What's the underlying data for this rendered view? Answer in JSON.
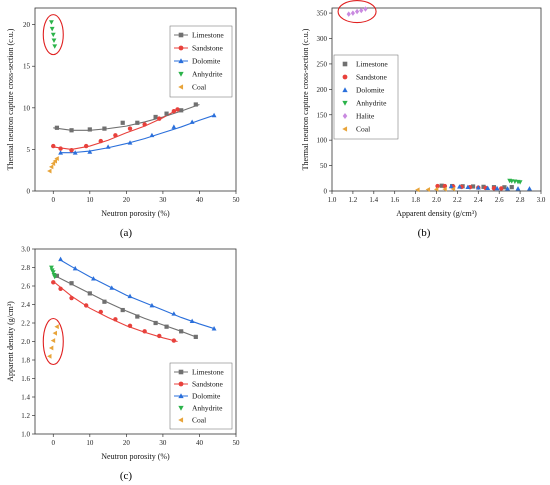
{
  "colors": {
    "Limestone": "#707070",
    "Sandstone": "#e8413c",
    "Dolomite": "#2a6fdb",
    "Anhydrite": "#2bb34a",
    "Halite": "#c98ae0",
    "Coal": "#e8a43a",
    "highlight_ellipse": "#e02020"
  },
  "panel_labels": [
    "(a)",
    "(b)",
    "(c)"
  ],
  "chart_data": [
    {
      "type": "scatter",
      "panel": "(a)",
      "xlabel": "Neutron porosity (%)",
      "ylabel": "Thermal neutron capture cross-section (c.u.)",
      "xlim": [
        -5,
        50
      ],
      "ylim": [
        0,
        22
      ],
      "xticks": [
        0,
        10,
        20,
        30,
        40,
        50
      ],
      "yticks": [
        0,
        5,
        10,
        15,
        20
      ],
      "legend_position": "top-right",
      "series": [
        {
          "name": "Limestone",
          "marker": "square",
          "x": [
            1,
            5,
            10,
            14,
            19,
            23,
            28,
            31,
            35,
            39
          ],
          "y": [
            7.6,
            7.3,
            7.4,
            7.5,
            8.2,
            8.2,
            8.9,
            9.3,
            9.7,
            10.4
          ],
          "fit": {
            "x": [
              0,
              5,
              10,
              15,
              20,
              25,
              30,
              35,
              40
            ],
            "y": [
              7.6,
              7.3,
              7.3,
              7.5,
              7.8,
              8.3,
              8.9,
              9.6,
              10.4
            ]
          }
        },
        {
          "name": "Sandstone",
          "marker": "circle",
          "x": [
            0,
            2,
            5,
            9,
            13,
            17,
            21,
            25,
            29,
            33,
            34
          ],
          "y": [
            5.4,
            5.1,
            4.9,
            5.4,
            6.0,
            6.7,
            7.5,
            8.0,
            8.7,
            9.6,
            9.8
          ],
          "fit": {
            "x": [
              0,
              5,
              10,
              15,
              20,
              25,
              30,
              34
            ],
            "y": [
              5.3,
              5.0,
              5.4,
              6.1,
              7.0,
              7.8,
              8.8,
              9.8
            ]
          }
        },
        {
          "name": "Dolomite",
          "marker": "triangle-up",
          "x": [
            2,
            6,
            10,
            15,
            21,
            27,
            33,
            38,
            44
          ],
          "y": [
            4.6,
            4.6,
            4.7,
            5.3,
            5.8,
            6.7,
            7.7,
            8.3,
            9.1
          ],
          "fit": {
            "x": [
              2,
              5,
              10,
              15,
              20,
              25,
              30,
              35,
              40,
              44
            ],
            "y": [
              4.6,
              4.6,
              4.8,
              5.2,
              5.7,
              6.3,
              7.0,
              7.7,
              8.5,
              9.1
            ]
          }
        },
        {
          "name": "Anhydrite",
          "marker": "triangle-down",
          "x": [
            -0.5,
            -0.3,
            0,
            0.2,
            0.4
          ],
          "y": [
            20.3,
            19.5,
            18.8,
            18.1,
            17.4
          ]
        },
        {
          "name": "Coal",
          "marker": "triangle-left",
          "x": [
            -1,
            -0.5,
            0,
            0.5,
            1
          ],
          "y": [
            2.4,
            2.9,
            3.3,
            3.6,
            3.9
          ]
        }
      ],
      "highlight": {
        "x": 0,
        "y": 18.8
      }
    },
    {
      "type": "scatter",
      "panel": "(b)",
      "xlabel": "Apparent density (g/cm³)",
      "ylabel": "Thermal neutron capture cross-section (c.u.)",
      "xlim": [
        1.0,
        3.0
      ],
      "ylim": [
        0,
        360
      ],
      "xticks": [
        1.0,
        1.2,
        1.4,
        1.6,
        1.8,
        2.0,
        2.2,
        2.4,
        2.6,
        2.8,
        3.0
      ],
      "yticks": [
        0,
        50,
        100,
        150,
        200,
        250,
        300,
        350
      ],
      "legend_position": "middle-left",
      "series": [
        {
          "name": "Limestone",
          "marker": "square",
          "x": [
            2.05,
            2.15,
            2.25,
            2.35,
            2.45,
            2.55,
            2.65,
            2.72
          ],
          "y": [
            10.4,
            9.7,
            9.3,
            8.9,
            8.2,
            7.5,
            7.3,
            7.6
          ]
        },
        {
          "name": "Sandstone",
          "marker": "circle",
          "x": [
            2.01,
            2.08,
            2.16,
            2.24,
            2.32,
            2.4,
            2.47,
            2.55,
            2.62
          ],
          "y": [
            9.8,
            9.6,
            8.7,
            8.0,
            7.5,
            6.7,
            6.0,
            5.4,
            5.1
          ]
        },
        {
          "name": "Dolomite",
          "marker": "triangle-up",
          "x": [
            2.14,
            2.22,
            2.3,
            2.4,
            2.49,
            2.58,
            2.68,
            2.78,
            2.89
          ],
          "y": [
            9.1,
            8.3,
            7.7,
            6.7,
            5.8,
            5.3,
            4.7,
            4.6,
            4.6
          ]
        },
        {
          "name": "Anhydrite",
          "marker": "triangle-down",
          "x": [
            2.7,
            2.72,
            2.75,
            2.78,
            2.8
          ],
          "y": [
            20.3,
            19.5,
            18.8,
            18.1,
            17.4
          ]
        },
        {
          "name": "Halite",
          "marker": "diamond",
          "x": [
            1.16,
            1.2,
            1.24,
            1.28,
            1.32
          ],
          "y": [
            348,
            350,
            353,
            355,
            358
          ]
        },
        {
          "name": "Coal",
          "marker": "triangle-left",
          "x": [
            1.82,
            1.92,
            2.0,
            2.08,
            2.16
          ],
          "y": [
            2.4,
            2.9,
            3.3,
            3.6,
            3.9
          ]
        }
      ],
      "highlight": {
        "x": 1.24,
        "y": 353
      }
    },
    {
      "type": "scatter",
      "panel": "(c)",
      "xlabel": "Neutron porosity (%)",
      "ylabel": "Apparent density (g/cm³)",
      "xlim": [
        -5,
        50
      ],
      "ylim": [
        1.0,
        3.0
      ],
      "xticks": [
        0,
        10,
        20,
        30,
        40,
        50
      ],
      "yticks": [
        1.0,
        1.2,
        1.4,
        1.6,
        1.8,
        2.0,
        2.2,
        2.4,
        2.6,
        2.8,
        3.0
      ],
      "legend_position": "bottom-right",
      "series": [
        {
          "name": "Limestone",
          "marker": "square",
          "x": [
            1,
            5,
            10,
            14,
            19,
            23,
            28,
            31,
            35,
            39
          ],
          "y": [
            2.71,
            2.63,
            2.52,
            2.43,
            2.34,
            2.27,
            2.2,
            2.16,
            2.11,
            2.05
          ],
          "fit": {
            "x": [
              1,
              5,
              10,
              15,
              20,
              25,
              30,
              35,
              39
            ],
            "y": [
              2.7,
              2.62,
              2.52,
              2.42,
              2.33,
              2.25,
              2.18,
              2.11,
              2.05
            ]
          }
        },
        {
          "name": "Sandstone",
          "marker": "circle",
          "x": [
            0,
            2,
            5,
            9,
            13,
            17,
            21,
            25,
            29,
            33
          ],
          "y": [
            2.64,
            2.57,
            2.47,
            2.39,
            2.32,
            2.24,
            2.17,
            2.11,
            2.06,
            2.01
          ],
          "fit": {
            "x": [
              0,
              5,
              10,
              15,
              20,
              25,
              30,
              34
            ],
            "y": [
              2.65,
              2.49,
              2.36,
              2.26,
              2.17,
              2.1,
              2.04,
              2.0
            ]
          }
        },
        {
          "name": "Dolomite",
          "marker": "triangle-up",
          "x": [
            2,
            6,
            11,
            16,
            21,
            27,
            33,
            38,
            44
          ],
          "y": [
            2.89,
            2.79,
            2.68,
            2.58,
            2.49,
            2.39,
            2.3,
            2.22,
            2.14
          ],
          "fit": {
            "x": [
              2,
              5,
              10,
              15,
              20,
              25,
              30,
              35,
              40,
              44
            ],
            "y": [
              2.88,
              2.81,
              2.7,
              2.6,
              2.5,
              2.42,
              2.34,
              2.26,
              2.19,
              2.14
            ]
          }
        },
        {
          "name": "Anhydrite",
          "marker": "triangle-down",
          "x": [
            -0.5,
            -0.3,
            0,
            0.2,
            0.4
          ],
          "y": [
            2.8,
            2.77,
            2.75,
            2.72,
            2.7
          ]
        },
        {
          "name": "Coal",
          "marker": "triangle-left",
          "x": [
            -1,
            -0.5,
            0,
            0.5,
            1
          ],
          "y": [
            1.84,
            1.93,
            2.01,
            2.09,
            2.16
          ]
        }
      ],
      "highlight": {
        "x": 0,
        "y": 2.0
      }
    }
  ]
}
